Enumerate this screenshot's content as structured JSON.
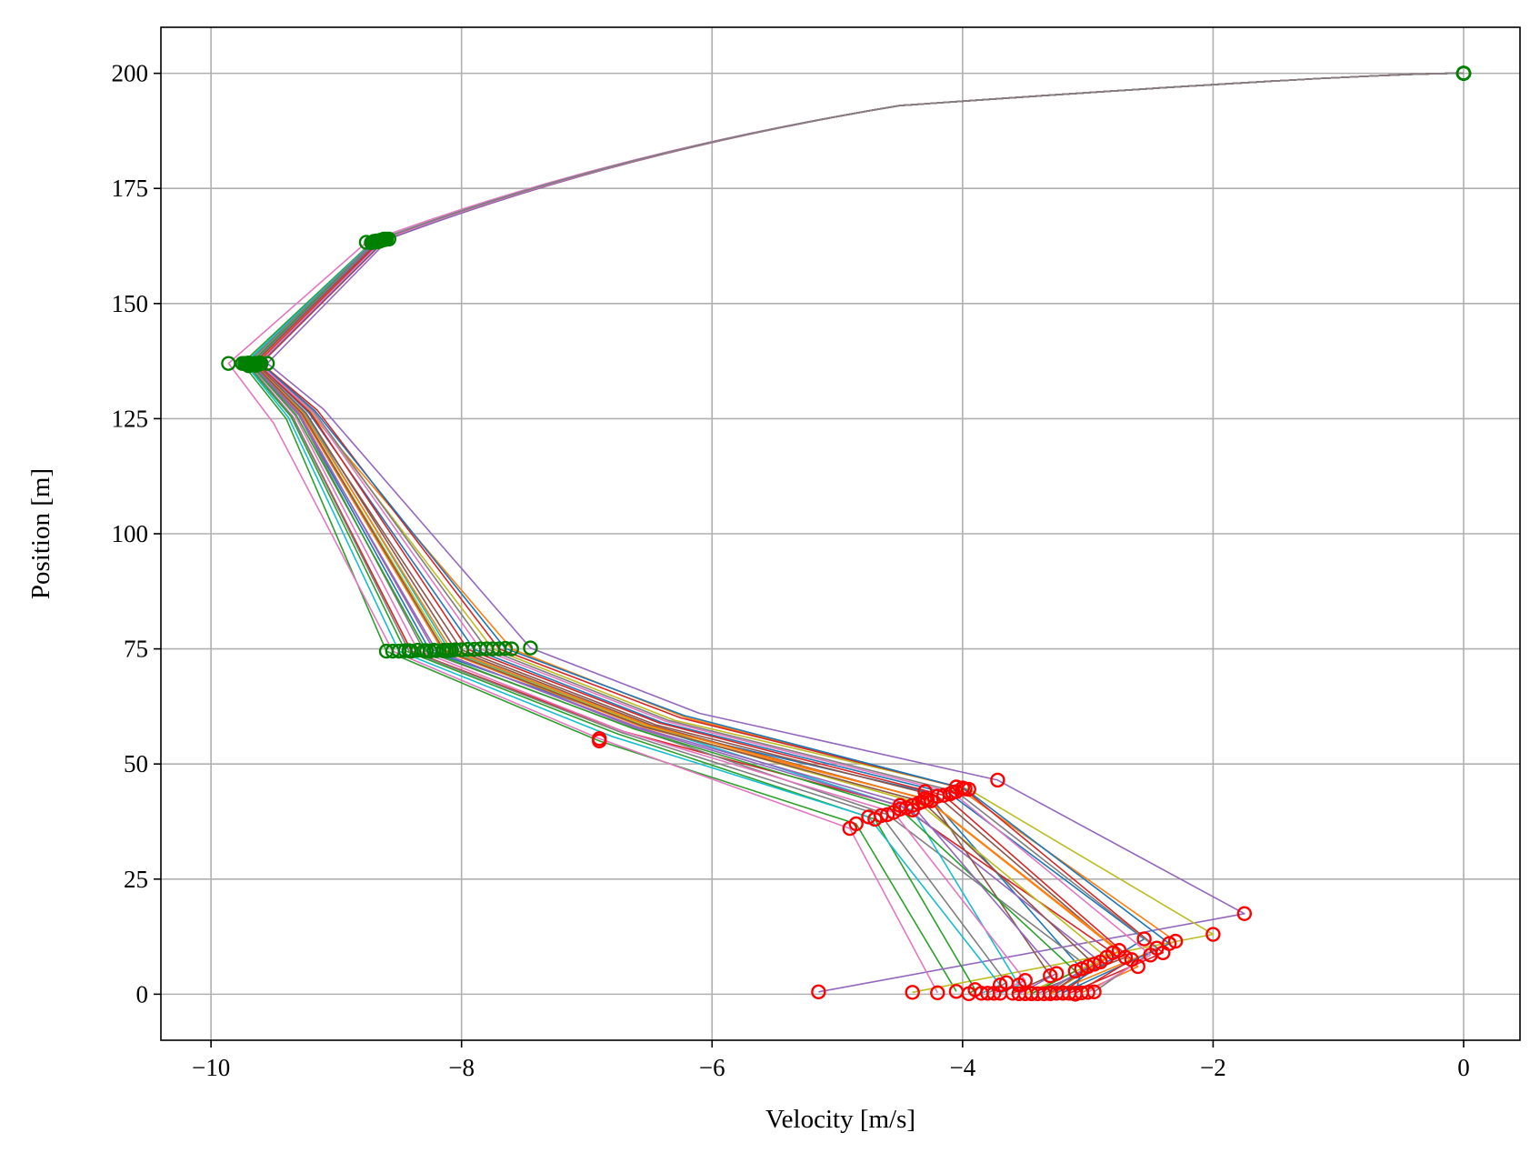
{
  "chart_data": {
    "type": "line",
    "title": "",
    "xlabel": "Velocity [m/s]",
    "ylabel": "Position [m]",
    "xlim": [
      -10.4,
      0.45
    ],
    "ylim": [
      -10,
      210
    ],
    "xticks": [
      -10,
      -8,
      -6,
      -4,
      -2,
      0
    ],
    "xtick_labels": [
      "−10",
      "−8",
      "−6",
      "−4",
      "−2",
      "0"
    ],
    "yticks": [
      0,
      25,
      50,
      75,
      100,
      125,
      150,
      175,
      200
    ],
    "ytick_labels": [
      "0",
      "25",
      "50",
      "75",
      "100",
      "125",
      "150",
      "175",
      "200"
    ],
    "grid": true,
    "legend": "none",
    "colors": [
      "#1f77b4",
      "#ff7f0e",
      "#2ca02c",
      "#d62728",
      "#9467bd",
      "#8c564b",
      "#e377c2",
      "#7f7f7f",
      "#bcbd22",
      "#17becf"
    ],
    "phase_marker_color": "#008000",
    "end_marker_color": "#ff0000",
    "series": [
      {
        "points": [
          [
            0,
            200
          ],
          [
            -4.5,
            193
          ],
          [
            -8.66,
            163.5
          ],
          [
            -9.65,
            137
          ],
          [
            -9.3,
            126
          ],
          [
            -8.25,
            74.5
          ],
          [
            -6.5,
            58
          ],
          [
            -4.3,
            44
          ],
          [
            -3.05,
            5.5
          ],
          [
            -3.1,
            0
          ]
        ]
      },
      {
        "points": [
          [
            0,
            200
          ],
          [
            -4.5,
            193
          ],
          [
            -8.62,
            164
          ],
          [
            -9.62,
            137
          ],
          [
            -9.2,
            126
          ],
          [
            -7.6,
            75
          ],
          [
            -6.2,
            60
          ],
          [
            -4.05,
            45
          ],
          [
            -2.3,
            11.5
          ],
          [
            -3.3,
            0.1
          ]
        ]
      },
      {
        "points": [
          [
            0,
            200
          ],
          [
            -4.5,
            193
          ],
          [
            -8.72,
            163.2
          ],
          [
            -9.75,
            137
          ],
          [
            -9.4,
            125
          ],
          [
            -8.6,
            74.5
          ],
          [
            -6.9,
            55
          ],
          [
            -4.85,
            37
          ],
          [
            -4.05,
            0.6
          ]
        ]
      },
      {
        "points": [
          [
            0,
            200
          ],
          [
            -4.5,
            193
          ],
          [
            -8.68,
            163.6
          ],
          [
            -9.7,
            136.5
          ],
          [
            -9.35,
            125.5
          ],
          [
            -8.4,
            74.5
          ],
          [
            -6.7,
            57
          ],
          [
            -4.5,
            41
          ],
          [
            -2.8,
            9
          ],
          [
            -3.2,
            0.2
          ]
        ]
      },
      {
        "points": [
          [
            0,
            200
          ],
          [
            -4.5,
            193
          ],
          [
            -8.58,
            164
          ],
          [
            -9.55,
            137
          ],
          [
            -9.1,
            127
          ],
          [
            -7.45,
            75.2
          ],
          [
            -6.1,
            61
          ],
          [
            -3.72,
            46.5
          ],
          [
            -1.75,
            17.5
          ],
          [
            -5.15,
            0.5
          ]
        ]
      },
      {
        "points": [
          [
            0,
            200
          ],
          [
            -4.5,
            193
          ],
          [
            -8.65,
            163.7
          ],
          [
            -9.66,
            136.8
          ],
          [
            -9.25,
            126
          ],
          [
            -8.0,
            74.8
          ],
          [
            -6.45,
            58.5
          ],
          [
            -4.2,
            43
          ],
          [
            -2.7,
            8
          ],
          [
            -3.45,
            0.2
          ]
        ]
      },
      {
        "points": [
          [
            0,
            200
          ],
          [
            -4.5,
            193
          ],
          [
            -8.76,
            163.3
          ],
          [
            -9.86,
            137
          ],
          [
            -9.5,
            124
          ],
          [
            -8.55,
            74.5
          ],
          [
            -6.9,
            55.5
          ],
          [
            -4.9,
            36
          ],
          [
            -4.2,
            0.3
          ]
        ]
      },
      {
        "points": [
          [
            0,
            200
          ],
          [
            -4.5,
            193
          ],
          [
            -8.7,
            163.5
          ],
          [
            -9.68,
            136.7
          ],
          [
            -9.3,
            125.8
          ],
          [
            -8.3,
            74.6
          ],
          [
            -6.6,
            57.5
          ],
          [
            -4.6,
            39
          ],
          [
            -3.0,
            6
          ],
          [
            -3.35,
            0.1
          ]
        ]
      },
      {
        "points": [
          [
            0,
            200
          ],
          [
            -4.5,
            193
          ],
          [
            -8.62,
            163.9
          ],
          [
            -9.62,
            136.9
          ],
          [
            -9.2,
            126.5
          ],
          [
            -7.75,
            75
          ],
          [
            -6.3,
            59.5
          ],
          [
            -3.95,
            44.5
          ],
          [
            -2.0,
            13
          ],
          [
            -4.4,
            0.4
          ]
        ]
      },
      {
        "points": [
          [
            0,
            200
          ],
          [
            -4.5,
            193
          ],
          [
            -8.67,
            163.4
          ],
          [
            -9.64,
            136.6
          ],
          [
            -9.25,
            126.2
          ],
          [
            -8.1,
            74.7
          ],
          [
            -6.5,
            58
          ],
          [
            -4.4,
            40
          ],
          [
            -3.55,
            2
          ],
          [
            -3.7,
            0.2
          ]
        ]
      },
      {
        "points": [
          [
            0,
            200
          ],
          [
            -4.5,
            193
          ],
          [
            -8.64,
            163.8
          ],
          [
            -9.63,
            137
          ],
          [
            -9.22,
            126.3
          ],
          [
            -7.9,
            74.9
          ],
          [
            -6.4,
            59
          ],
          [
            -4.1,
            43.5
          ],
          [
            -2.55,
            12
          ],
          [
            -3.25,
            0.2
          ]
        ]
      },
      {
        "points": [
          [
            0,
            200
          ],
          [
            -4.5,
            193
          ],
          [
            -8.66,
            163.5
          ],
          [
            -9.66,
            136.8
          ],
          [
            -9.28,
            126
          ],
          [
            -8.15,
            74.6
          ],
          [
            -6.55,
            58
          ],
          [
            -4.3,
            42.5
          ],
          [
            -2.6,
            6
          ],
          [
            -3.05,
            0.3
          ]
        ]
      },
      {
        "points": [
          [
            0,
            200
          ],
          [
            -4.5,
            193
          ],
          [
            -8.7,
            163.4
          ],
          [
            -9.72,
            136.9
          ],
          [
            -9.36,
            125.4
          ],
          [
            -8.45,
            74.6
          ],
          [
            -6.75,
            56.5
          ],
          [
            -4.7,
            38
          ],
          [
            -3.9,
            1
          ],
          [
            -3.95,
            0.1
          ]
        ]
      },
      {
        "points": [
          [
            0,
            200
          ],
          [
            -4.5,
            193
          ],
          [
            -8.6,
            164
          ],
          [
            -9.6,
            137
          ],
          [
            -9.15,
            126.8
          ],
          [
            -7.7,
            75
          ],
          [
            -6.25,
            60
          ],
          [
            -4.0,
            44.8
          ],
          [
            -2.4,
            9
          ],
          [
            -3.15,
            0.2
          ]
        ]
      },
      {
        "points": [
          [
            0,
            200
          ],
          [
            -4.5,
            193
          ],
          [
            -8.69,
            163.5
          ],
          [
            -9.67,
            136.8
          ],
          [
            -9.3,
            125.9
          ],
          [
            -8.2,
            74.6
          ],
          [
            -6.6,
            57.8
          ],
          [
            -4.45,
            40.5
          ],
          [
            -2.9,
            7
          ],
          [
            -3.4,
            0.1
          ]
        ]
      },
      {
        "points": [
          [
            0,
            200
          ],
          [
            -4.5,
            193
          ],
          [
            -8.65,
            163.6
          ],
          [
            -9.64,
            136.9
          ],
          [
            -9.24,
            126.2
          ],
          [
            -8.05,
            74.8
          ],
          [
            -6.48,
            58.4
          ],
          [
            -4.25,
            42
          ],
          [
            -3.3,
            4
          ],
          [
            -3.6,
            0.2
          ]
        ]
      },
      {
        "points": [
          [
            0,
            200
          ],
          [
            -4.5,
            193
          ],
          [
            -8.68,
            163.4
          ],
          [
            -9.7,
            137.1
          ],
          [
            -9.33,
            125.7
          ],
          [
            -8.35,
            74.7
          ],
          [
            -6.7,
            57
          ],
          [
            -4.55,
            39.5
          ],
          [
            -3.5,
            3
          ],
          [
            -3.75,
            0.2
          ]
        ]
      },
      {
        "points": [
          [
            0,
            200
          ],
          [
            -4.5,
            193
          ],
          [
            -8.63,
            163.8
          ],
          [
            -9.61,
            137
          ],
          [
            -9.18,
            126.6
          ],
          [
            -7.8,
            75
          ],
          [
            -6.35,
            59.5
          ],
          [
            -4.05,
            44
          ],
          [
            -2.45,
            10
          ],
          [
            -2.95,
            0.5
          ]
        ]
      },
      {
        "points": [
          [
            0,
            200
          ],
          [
            -4.5,
            193
          ],
          [
            -8.67,
            163.5
          ],
          [
            -9.65,
            136.7
          ],
          [
            -9.27,
            126
          ],
          [
            -8.12,
            74.6
          ],
          [
            -6.52,
            58.2
          ],
          [
            -4.35,
            41.5
          ],
          [
            -2.85,
            8
          ],
          [
            -3.5,
            0.1
          ]
        ]
      },
      {
        "points": [
          [
            0,
            200
          ],
          [
            -4.5,
            193
          ],
          [
            -8.71,
            163.3
          ],
          [
            -9.73,
            137
          ],
          [
            -9.38,
            125.2
          ],
          [
            -8.5,
            74.5
          ],
          [
            -6.8,
            56
          ],
          [
            -4.75,
            38.5
          ],
          [
            -3.7,
            2
          ],
          [
            -3.85,
            0.2
          ]
        ]
      },
      {
        "points": [
          [
            0,
            200
          ],
          [
            -4.5,
            193
          ],
          [
            -8.61,
            163.9
          ],
          [
            -9.61,
            137.1
          ],
          [
            -9.17,
            126.7
          ],
          [
            -7.65,
            75.1
          ],
          [
            -6.22,
            60.5
          ],
          [
            -3.98,
            44.6
          ],
          [
            -2.35,
            11
          ],
          [
            -3.2,
            0.3
          ]
        ]
      },
      {
        "points": [
          [
            0,
            200
          ],
          [
            -4.5,
            193
          ],
          [
            -8.66,
            163.6
          ],
          [
            -9.65,
            136.8
          ],
          [
            -9.26,
            126.1
          ],
          [
            -8.08,
            74.7
          ],
          [
            -6.5,
            58.3
          ],
          [
            -4.28,
            42.2
          ],
          [
            -2.75,
            9.5
          ],
          [
            -3.3,
            0.2
          ]
        ]
      },
      {
        "points": [
          [
            0,
            200
          ],
          [
            -4.5,
            193
          ],
          [
            -8.69,
            163.4
          ],
          [
            -9.69,
            136.9
          ],
          [
            -9.32,
            125.8
          ],
          [
            -8.28,
            74.6
          ],
          [
            -6.62,
            57.6
          ],
          [
            -4.5,
            40.2
          ],
          [
            -3.1,
            5
          ],
          [
            -3.45,
            0.1
          ]
        ]
      },
      {
        "points": [
          [
            0,
            200
          ],
          [
            -4.5,
            193
          ],
          [
            -8.64,
            163.7
          ],
          [
            -9.63,
            137
          ],
          [
            -9.21,
            126.4
          ],
          [
            -7.95,
            74.9
          ],
          [
            -6.42,
            58.9
          ],
          [
            -4.15,
            43.2
          ],
          [
            -2.65,
            7.5
          ],
          [
            -3.1,
            0.2
          ]
        ]
      },
      {
        "points": [
          [
            0,
            200
          ],
          [
            -4.5,
            193
          ],
          [
            -8.68,
            163.5
          ],
          [
            -9.67,
            136.8
          ],
          [
            -9.29,
            125.9
          ],
          [
            -8.22,
            74.7
          ],
          [
            -6.58,
            57.9
          ],
          [
            -4.4,
            41
          ],
          [
            -3.25,
            4.5
          ],
          [
            -3.55,
            0.1
          ]
        ]
      },
      {
        "points": [
          [
            0,
            200
          ],
          [
            -4.5,
            193
          ],
          [
            -8.66,
            163.6
          ],
          [
            -9.66,
            136.9
          ],
          [
            -9.27,
            126
          ],
          [
            -8.14,
            74.7
          ],
          [
            -6.54,
            58.1
          ],
          [
            -4.32,
            41.8
          ],
          [
            -2.95,
            6.5
          ],
          [
            -3.3,
            0.3
          ]
        ]
      },
      {
        "points": [
          [
            0,
            200
          ],
          [
            -4.5,
            193
          ],
          [
            -8.62,
            163.9
          ],
          [
            -9.62,
            137
          ],
          [
            -9.19,
            126.5
          ],
          [
            -7.85,
            75
          ],
          [
            -6.37,
            59.3
          ],
          [
            -4.08,
            43.8
          ],
          [
            -2.5,
            8.5
          ],
          [
            -3.0,
            0.4
          ]
        ]
      },
      {
        "points": [
          [
            0,
            200
          ],
          [
            -4.5,
            193
          ],
          [
            -8.7,
            163.4
          ],
          [
            -9.71,
            137
          ],
          [
            -9.35,
            125.5
          ],
          [
            -8.42,
            74.6
          ],
          [
            -6.72,
            56.8
          ],
          [
            -4.65,
            38.8
          ],
          [
            -3.65,
            2.5
          ],
          [
            -3.8,
            0.2
          ]
        ]
      }
    ]
  }
}
